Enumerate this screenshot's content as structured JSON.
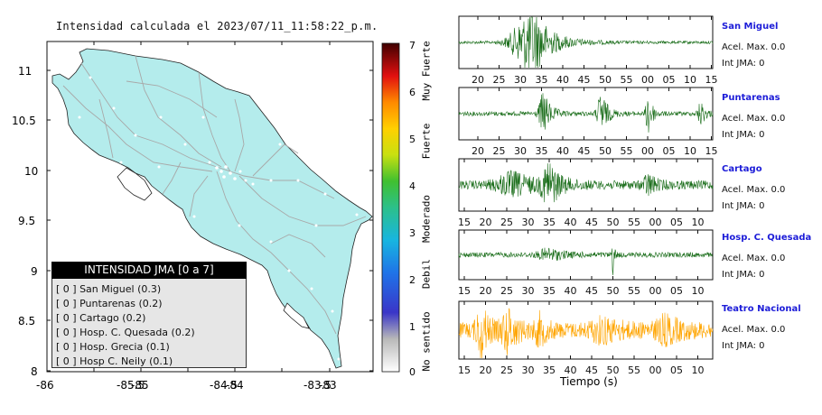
{
  "map": {
    "title": "Intensidad calculada el 2023/07/11_11:58:22_p.m.",
    "lat_ticks": [
      "11",
      "10.5",
      "10",
      "9.5",
      "9",
      "8.5",
      "8"
    ],
    "lon_ticks": [
      "-86",
      "-85.5",
      "-85",
      "-84.5",
      "-84",
      "-83.5",
      "-83"
    ],
    "land_color": "#b4ecec",
    "road_color": "#a8a8a8"
  },
  "legend": {
    "title": "INTENSIDAD JMA [0 a 7]",
    "items": [
      {
        "text": "[ 0 ] San Miguel (0.3)"
      },
      {
        "text": "[ 0 ] Puntarenas (0.2)"
      },
      {
        "text": "[ 0 ] Cartago (0.2)"
      },
      {
        "text": "[ 0 ] Hosp. C. Quesada (0.2)"
      },
      {
        "text": "[ 0 ] Hosp. Grecia (0.1)"
      },
      {
        "text": "[ 0 ] Hosp C. Neily (0.1)"
      }
    ]
  },
  "colorbar": {
    "ticks": [
      "7",
      "6",
      "5",
      "4",
      "3",
      "2",
      "1",
      "0"
    ],
    "labels": [
      "Muy Fuerte",
      "Fuerte",
      "Moderado",
      "Debil",
      "No sentido"
    ]
  },
  "seismograms": [
    {
      "name": "San Miguel",
      "accel": "Acel. Max. 0.0",
      "jma": "Int JMA: 0",
      "color": "#1b6e1b",
      "ticks": [
        "20",
        "25",
        "30",
        "35",
        "40",
        "45",
        "50",
        "55",
        "00",
        "05",
        "10",
        "15"
      ],
      "offset": 20
    },
    {
      "name": "Puntarenas",
      "accel": "Acel. Max. 0.0",
      "jma": "Int JMA: 0",
      "color": "#1b6e1b",
      "ticks": [
        "20",
        "25",
        "30",
        "35",
        "40",
        "45",
        "50",
        "55",
        "00",
        "05",
        "10",
        "15"
      ],
      "offset": 20
    },
    {
      "name": "Cartago",
      "accel": "Acel. Max. 0.0",
      "jma": "Int JMA: 0",
      "color": "#1b6e1b",
      "ticks": [
        "15",
        "20",
        "25",
        "30",
        "35",
        "40",
        "45",
        "50",
        "55",
        "00",
        "05",
        "10"
      ],
      "offset": 15
    },
    {
      "name": "Hosp. C. Quesada",
      "accel": "Acel. Max. 0.0",
      "jma": "Int JMA: 0",
      "color": "#1b6e1b",
      "ticks": [
        "15",
        "20",
        "25",
        "30",
        "35",
        "40",
        "45",
        "50",
        "55",
        "00",
        "05",
        "10"
      ],
      "offset": 15
    },
    {
      "name": "Teatro Nacional",
      "accel": "Acel. Max. 0.0",
      "jma": "Int JMA: 0",
      "color": "#ffa500",
      "ticks": [
        "15",
        "20",
        "25",
        "30",
        "35",
        "40",
        "45",
        "50",
        "55",
        "00",
        "05",
        "10"
      ],
      "offset": 15
    }
  ],
  "time_axis_label": "Tiempo (s)"
}
